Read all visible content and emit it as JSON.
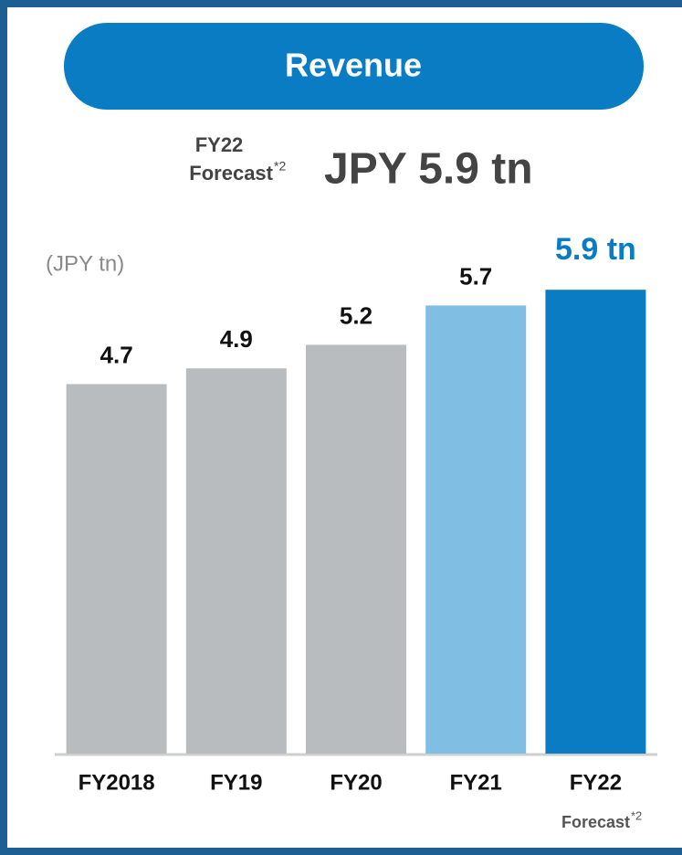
{
  "chart_data": {
    "type": "bar",
    "title": "Revenue",
    "forecast_note": {
      "label": "FY22",
      "sub": "Forecast",
      "mark": "*2"
    },
    "headline": "JPY 5.9 tn",
    "unit_label": "(JPY tn)",
    "categories": [
      "FY2018",
      "FY19",
      "FY20",
      "FY21",
      "FY22"
    ],
    "category_note": {
      "sub": "Forecast",
      "mark": "*2"
    },
    "values": [
      4.7,
      4.9,
      5.2,
      5.7,
      5.9
    ],
    "value_labels": [
      "4.7",
      "4.9",
      "5.2",
      "5.7",
      "5.9 tn"
    ],
    "colors": [
      "#b9bcbf",
      "#b9bcbf",
      "#b9bcbf",
      "#80bfe3",
      "#0a7cc4"
    ],
    "ylim": [
      0,
      6.1
    ]
  }
}
